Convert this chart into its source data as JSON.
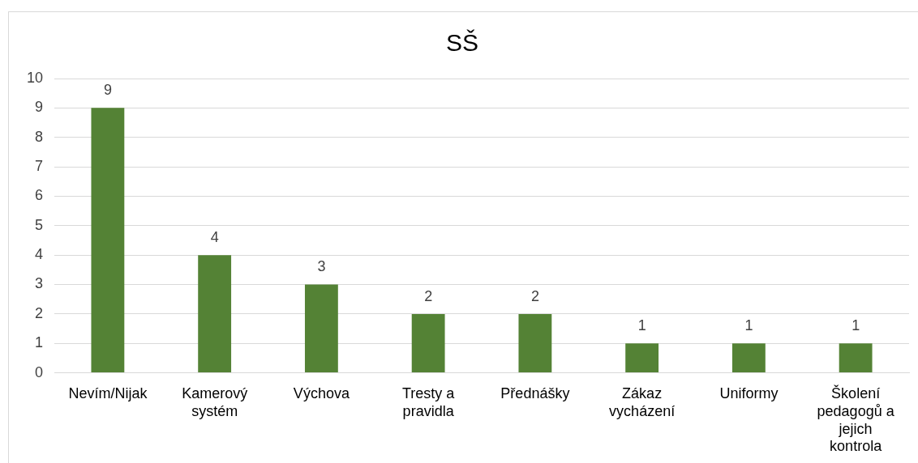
{
  "chart_data": {
    "type": "bar",
    "title": "SŠ",
    "categories": [
      "Nevím/Nijak",
      "Kamerový systém",
      "Výchova",
      "Tresty a pravidla",
      "Přednášky",
      "Zákaz vycházení",
      "Uniformy",
      "Školení pedagogů a jejich kontrola"
    ],
    "values": [
      9,
      4,
      3,
      2,
      2,
      1,
      1,
      1
    ],
    "color": "#548235",
    "ylim": [
      0,
      10
    ],
    "yticks": [
      0,
      1,
      2,
      3,
      4,
      5,
      6,
      7,
      8,
      9,
      10
    ],
    "grid": "y",
    "data_labels": true,
    "legend": false
  }
}
